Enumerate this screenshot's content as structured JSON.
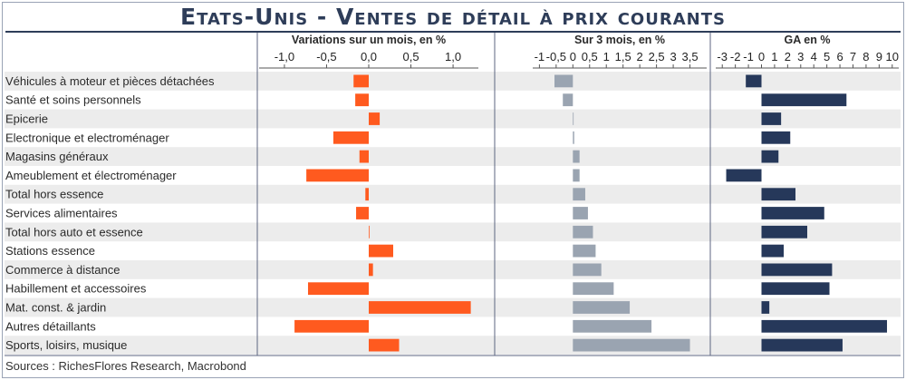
{
  "title": "Etats-Unis - Ventes de détail à prix courants",
  "source": "Sources : RichesFlores Research, Macrobond",
  "chart_data": {
    "type": "bar",
    "orientation": "horizontal",
    "categories": [
      "Véhicules à moteur et pièces détachées",
      "Santé et soins personnels",
      "Epicerie",
      "Electronique et electroménager",
      "Magasins généraux",
      "Ameublement et électroménager",
      "Total hors essence",
      "Services alimentaires",
      "Total hors auto et essence",
      "Stations essence",
      "Commerce à distance",
      "Habillement et accessoires",
      "Mat. const. & jardin",
      "Autres détaillants",
      "Sports, loisirs, musique"
    ],
    "panels": [
      {
        "title": "Variations sur un mois, en %",
        "color": "#ff5a1f",
        "xlim": [
          -1.3,
          1.3
        ],
        "ticks": [
          "-1,0",
          "-0,5",
          "0,0",
          "0,5",
          "1,0"
        ],
        "tick_values": [
          -1.0,
          -0.5,
          0.0,
          0.5,
          1.0
        ],
        "values": [
          -0.18,
          -0.16,
          0.13,
          -0.42,
          -0.11,
          -0.74,
          -0.04,
          -0.15,
          0.0,
          0.29,
          0.05,
          -0.72,
          1.21,
          -0.88,
          0.36
        ]
      },
      {
        "title": "Sur 3 mois, en %",
        "color": "#9aa4b1",
        "xlim": [
          -1.2,
          4.0
        ],
        "ticks": [
          "-1",
          "-0,5",
          "0",
          "0,5",
          "1",
          "1,5",
          "2",
          "2,5",
          "3",
          "3,5"
        ],
        "tick_values": [
          -1.0,
          -0.5,
          0.0,
          0.5,
          1.0,
          1.5,
          2.0,
          2.5,
          3.0,
          3.5
        ],
        "values": [
          -0.55,
          -0.3,
          0.02,
          0.04,
          0.2,
          0.2,
          0.37,
          0.45,
          0.6,
          0.68,
          0.85,
          1.22,
          1.7,
          2.35,
          3.5
        ]
      },
      {
        "title": "GA en %",
        "color": "#26385a",
        "xlim": [
          -3.5,
          10.5
        ],
        "ticks": [
          "-3",
          "-2",
          "-1",
          "0",
          "1",
          "2",
          "3",
          "4",
          "5",
          "6",
          "7",
          "8",
          "9",
          "10"
        ],
        "tick_values": [
          -3,
          -2,
          -1,
          0,
          1,
          2,
          3,
          4,
          5,
          6,
          7,
          8,
          9,
          10
        ],
        "values": [
          -1.2,
          6.5,
          1.5,
          2.2,
          1.3,
          -2.7,
          2.6,
          4.8,
          3.5,
          1.7,
          5.4,
          5.2,
          0.6,
          9.6,
          6.2
        ]
      }
    ]
  }
}
